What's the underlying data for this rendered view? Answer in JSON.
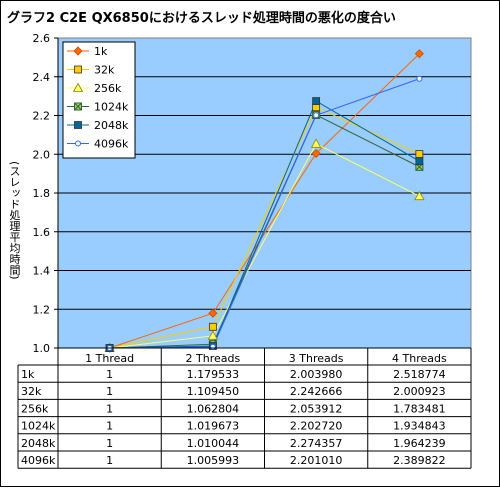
{
  "chart_data": {
    "type": "line",
    "title": "グラフ2 C2E QX6850におけるスレッド処理時間の悪化の度合い",
    "ylabel": "(スレッド処理平均時間)",
    "xlabel": "",
    "categories": [
      "1 Thread",
      "2 Threads",
      "3 Threads",
      "4 Threads"
    ],
    "ylim": [
      1.0,
      2.6
    ],
    "yticks": [
      "1.0",
      "1.2",
      "1.4",
      "1.6",
      "1.8",
      "2.0",
      "2.2",
      "2.4",
      "2.6"
    ],
    "grid": true,
    "legend_position": "top-left",
    "plot_background": "#99ccff",
    "series": [
      {
        "name": "1k",
        "color": "#ff6600",
        "marker": "diamond",
        "values": [
          1,
          1.179533,
          2.00398,
          2.518774
        ],
        "labels": [
          "1",
          "1.179533",
          "2.003980",
          "2.518774"
        ]
      },
      {
        "name": "32k",
        "color": "#ffcc00",
        "marker": "square",
        "values": [
          1,
          1.10945,
          2.242666,
          2.000923
        ],
        "labels": [
          "1",
          "1.109450",
          "2.242666",
          "2.000923"
        ]
      },
      {
        "name": "256k",
        "color": "#ffff66",
        "marker": "triangle",
        "values": [
          1,
          1.062804,
          2.053912,
          1.783481
        ],
        "labels": [
          "1",
          "1.062804",
          "2.053912",
          "1.783481"
        ]
      },
      {
        "name": "1024k",
        "color": "#336633",
        "marker": "xsquare",
        "values": [
          1,
          1.019673,
          2.20272,
          1.934843
        ],
        "labels": [
          "1",
          "1.019673",
          "2.202720",
          "1.934843"
        ]
      },
      {
        "name": "2048k",
        "color": "#006699",
        "marker": "square",
        "values": [
          1,
          1.010044,
          2.274357,
          1.964239
        ],
        "labels": [
          "1",
          "1.010044",
          "2.274357",
          "1.964239"
        ]
      },
      {
        "name": "4096k",
        "color": "#3366ff",
        "marker": "circle",
        "values": [
          1,
          1.005993,
          2.20101,
          2.389822
        ],
        "labels": [
          "1",
          "1.005993",
          "2.201010",
          "2.389822"
        ]
      }
    ]
  }
}
